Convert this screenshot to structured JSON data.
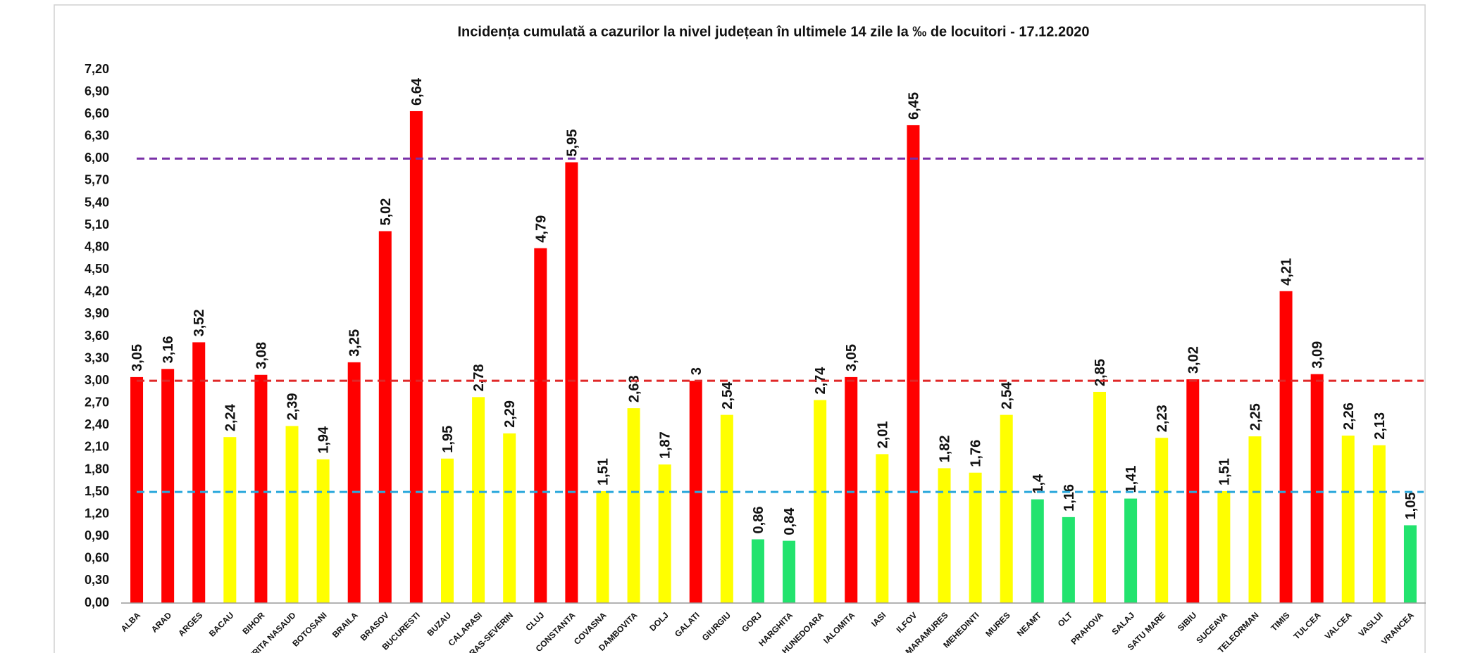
{
  "chart_data": {
    "type": "bar",
    "title": "Incidența cumulată a cazurilor la nivel județean în ultimele 14 zile la ‰ de locuitori - 17.12.2020",
    "categories": [
      "ALBA",
      "ARAD",
      "ARGES",
      "BACAU",
      "BIHOR",
      "BISTRITA NASAUD",
      "BOTOSANI",
      "BRAILA",
      "BRASOV",
      "BUCURESTI",
      "BUZAU",
      "CALARASI",
      "CARAS-SEVERIN",
      "CLUJ",
      "CONSTANTA",
      "COVASNA",
      "DAMBOVITA",
      "DOLJ",
      "GALATI",
      "GIURGIU",
      "GORJ",
      "HARGHITA",
      "HUNEDOARA",
      "IALOMITA",
      "IASI",
      "ILFOV",
      "MARAMURES",
      "MEHEDINTI",
      "MURES",
      "NEAMT",
      "OLT",
      "PRAHOVA",
      "SALAJ",
      "SATU MARE",
      "SIBIU",
      "SUCEAVA",
      "TELEORMAN",
      "TIMIS",
      "TULCEA",
      "VALCEA",
      "VASLUI",
      "VRANCEA"
    ],
    "values": [
      3.05,
      3.16,
      3.52,
      2.24,
      3.08,
      2.39,
      1.94,
      3.25,
      5.02,
      6.64,
      1.95,
      2.78,
      2.29,
      4.79,
      5.95,
      1.51,
      2.63,
      1.87,
      3,
      2.54,
      0.86,
      0.84,
      2.74,
      3.05,
      2.01,
      6.45,
      1.82,
      1.76,
      2.54,
      1.4,
      1.16,
      2.85,
      1.41,
      2.23,
      3.02,
      1.51,
      2.25,
      4.21,
      3.09,
      2.26,
      2.13,
      1.05
    ],
    "value_labels": [
      "3,05",
      "3,16",
      "3,52",
      "2,24",
      "3,08",
      "2,39",
      "1,94",
      "3,25",
      "5,02",
      "6,64",
      "1,95",
      "2,78",
      "2,29",
      "4,79",
      "5,95",
      "1,51",
      "2,63",
      "1,87",
      "3",
      "2,54",
      "0,86",
      "0,84",
      "2,74",
      "3,05",
      "2,01",
      "6,45",
      "1,82",
      "1,76",
      "2,54",
      "1,4",
      "1,16",
      "2,85",
      "1,41",
      "2,23",
      "3,02",
      "1,51",
      "2,25",
      "4,21",
      "3,09",
      "2,26",
      "2,13",
      "1,05"
    ],
    "colors": [
      "#ff0000",
      "#ff0000",
      "#ff0000",
      "#ffff00",
      "#ff0000",
      "#ffff00",
      "#ffff00",
      "#ff0000",
      "#ff0000",
      "#ff0000",
      "#ffff00",
      "#ffff00",
      "#ffff00",
      "#ff0000",
      "#ff0000",
      "#ffff00",
      "#ffff00",
      "#ffff00",
      "#ff0000",
      "#ffff00",
      "#22e36e",
      "#22e36e",
      "#ffff00",
      "#ff0000",
      "#ffff00",
      "#ff0000",
      "#ffff00",
      "#ffff00",
      "#ffff00",
      "#22e36e",
      "#22e36e",
      "#ffff00",
      "#22e36e",
      "#ffff00",
      "#ff0000",
      "#ffff00",
      "#ffff00",
      "#ff0000",
      "#ff0000",
      "#ffff00",
      "#ffff00",
      "#22e36e"
    ],
    "ylim": [
      0,
      7.2
    ],
    "yticks": [
      {
        "value": 0,
        "label": "0,00"
      },
      {
        "value": 0.3,
        "label": "0,30"
      },
      {
        "value": 0.6,
        "label": "0,60"
      },
      {
        "value": 0.9,
        "label": "0,90"
      },
      {
        "value": 1.2,
        "label": "1,20"
      },
      {
        "value": 1.5,
        "label": "1,50"
      },
      {
        "value": 1.8,
        "label": "1,80"
      },
      {
        "value": 2.1,
        "label": "2,10"
      },
      {
        "value": 2.4,
        "label": "2,40"
      },
      {
        "value": 2.7,
        "label": "2,70"
      },
      {
        "value": 3,
        "label": "3,00"
      },
      {
        "value": 3.3,
        "label": "3,30"
      },
      {
        "value": 3.6,
        "label": "3,60"
      },
      {
        "value": 3.9,
        "label": "3,90"
      },
      {
        "value": 4.2,
        "label": "4,20"
      },
      {
        "value": 4.5,
        "label": "4,50"
      },
      {
        "value": 4.8,
        "label": "4,80"
      },
      {
        "value": 5.1,
        "label": "5,10"
      },
      {
        "value": 5.4,
        "label": "5,40"
      },
      {
        "value": 5.7,
        "label": "5,70"
      },
      {
        "value": 6,
        "label": "6,00"
      },
      {
        "value": 6.3,
        "label": "6,30"
      },
      {
        "value": 6.6,
        "label": "6,60"
      },
      {
        "value": 6.9,
        "label": "6,90"
      },
      {
        "value": 7.2,
        "label": "7,20"
      }
    ],
    "reference_lines": [
      {
        "value": 1.5,
        "color": "#2aa8dc"
      },
      {
        "value": 3,
        "color": "#e02828"
      },
      {
        "value": 6,
        "color": "#7a30a8"
      }
    ],
    "grid": false
  }
}
